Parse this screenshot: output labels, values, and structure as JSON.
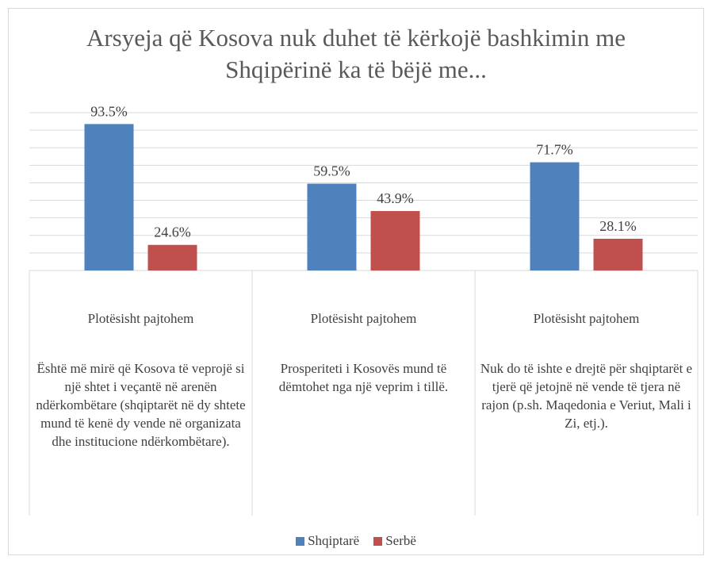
{
  "chart_data": {
    "type": "bar",
    "title": "Arsyeja që Kosova nuk duhet të kërkojë bashkimin me Shqipërinë ka të bëjë me...",
    "categories": [
      "Plotësisht pajtohem",
      "Plotësisht pajtohem",
      "Plotësisht pajtohem"
    ],
    "groups": [
      "Është më mirë që Kosova të veprojë si një shtet i veçantë në arenën ndërkombëtare (shqiptarët në dy shtete mund të kenë dy vende në organizata dhe institucione ndërkombëtare).",
      "Prosperiteti i Kosovës mund të dëmtohet nga një veprim i tillë.",
      "Nuk do të ishte e drejtë për shqiptarët e tjerë që jetojnë në vende të tjera në rajon (p.sh. Maqedonia e Veriut, Mali i Zi, etj.)."
    ],
    "series": [
      {
        "name": "Shqiptarë",
        "color": "#4f81bd",
        "values": [
          93.5,
          59.5,
          71.7
        ],
        "value_labels": [
          "93.5%",
          "59.5%",
          "71.7%"
        ]
      },
      {
        "name": "Serbë",
        "color": "#c0504d",
        "values": [
          24.6,
          43.9,
          28.1
        ],
        "value_labels": [
          "24.6%",
          "43.9%",
          "28.1%"
        ]
      }
    ],
    "ylim": [
      10,
      100
    ],
    "yticks": [
      10,
      20,
      30,
      40,
      50,
      60,
      70,
      80,
      90,
      100
    ],
    "grid": true,
    "legend": "bottom"
  }
}
